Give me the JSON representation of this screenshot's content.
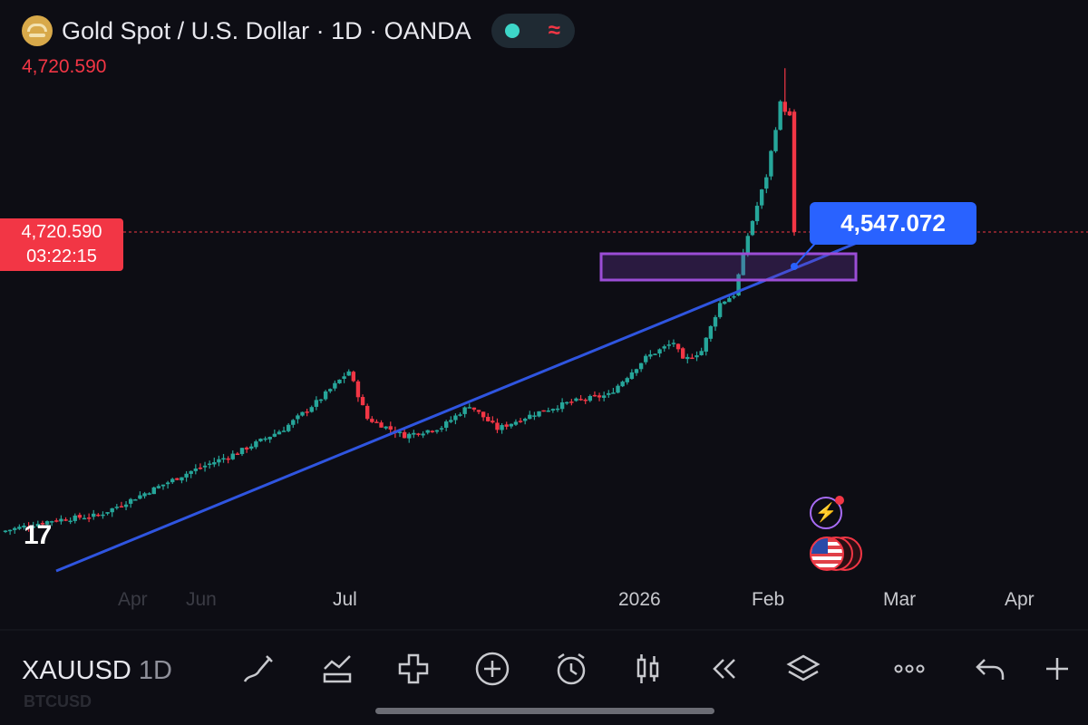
{
  "header": {
    "title": "Gold Spot / U.S. Dollar · 1D · OANDA",
    "last_price": "4,720.590"
  },
  "price_label": {
    "price": "4,720.590",
    "countdown": "03:22:15"
  },
  "callout": {
    "value": "4,547.072"
  },
  "watermark": "17",
  "x_axis": {
    "labels": [
      "Jul",
      "2026",
      "Feb",
      "Mar",
      "Apr"
    ],
    "faint_labels": [
      "Apr",
      "Jun"
    ]
  },
  "toolbar": {
    "symbol": "XAUUSD",
    "timeframe": "1D",
    "ghost_symbol": "BTCUSD",
    "icons": [
      "draw-icon",
      "indicators-icon",
      "add-icon",
      "add-circle-icon",
      "alert-icon",
      "candle-type-icon",
      "replay-icon",
      "layers-icon",
      "more-icon",
      "undo-icon",
      "plus-icon"
    ]
  },
  "colors": {
    "background": "#0d0d14",
    "up": "#26a69a",
    "down": "#f23645",
    "trendline": "#2f55e0",
    "zone": "#9b4dd6",
    "price_line": "#f23645",
    "callout": "#2962ff"
  },
  "chart_data": {
    "type": "candlestick",
    "symbol": "XAUUSD",
    "timeframe": "1D",
    "source": "OANDA",
    "current_price": 4720.59,
    "trendline_touch": 4547.072,
    "x_ticks": [
      "Jul",
      "2026",
      "Feb",
      "Mar",
      "Apr"
    ],
    "zone": {
      "low": 4540,
      "high": 4590
    },
    "series": [
      {
        "name": "close",
        "anchors": [
          {
            "i": 0,
            "close": 2960
          },
          {
            "i": 10,
            "close": 3020
          },
          {
            "i": 20,
            "close": 3050
          },
          {
            "i": 30,
            "close": 3180
          },
          {
            "i": 40,
            "close": 3310
          },
          {
            "i": 50,
            "close": 3420
          },
          {
            "i": 60,
            "close": 3560
          },
          {
            "i": 68,
            "close": 3740
          },
          {
            "i": 74,
            "close": 3900
          },
          {
            "i": 78,
            "close": 3620
          },
          {
            "i": 86,
            "close": 3520
          },
          {
            "i": 94,
            "close": 3570
          },
          {
            "i": 100,
            "close": 3700
          },
          {
            "i": 106,
            "close": 3560
          },
          {
            "i": 114,
            "close": 3650
          },
          {
            "i": 122,
            "close": 3720
          },
          {
            "i": 130,
            "close": 3760
          },
          {
            "i": 138,
            "close": 3980
          },
          {
            "i": 144,
            "close": 4070
          },
          {
            "i": 146,
            "close": 3960
          },
          {
            "i": 150,
            "close": 4020
          },
          {
            "i": 154,
            "close": 4300
          },
          {
            "i": 157,
            "close": 4350
          },
          {
            "i": 160,
            "close": 4700
          },
          {
            "i": 164,
            "close": 5050
          },
          {
            "i": 167,
            "close": 5480
          },
          {
            "i": 169,
            "close": 5400
          },
          {
            "i": 170,
            "close": 4720.59
          }
        ]
      }
    ]
  }
}
